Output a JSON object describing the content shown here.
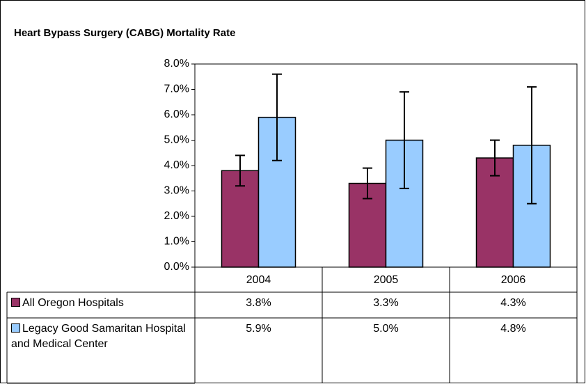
{
  "chart_data": {
    "type": "bar",
    "title": "Heart Bypass Surgery (CABG) Mortality Rate",
    "categories": [
      "2004",
      "2005",
      "2006"
    ],
    "series": [
      {
        "name": "All Oregon Hospitals",
        "color": "#993366",
        "values": [
          3.8,
          3.3,
          4.3
        ],
        "value_labels": [
          "3.8%",
          "3.3%",
          "4.3%"
        ],
        "errors": [
          0.6,
          0.6,
          0.7
        ]
      },
      {
        "name": "Legacy Good Samaritan Hospital and Medical Center",
        "color": "#99ccff",
        "values": [
          5.9,
          5.0,
          4.8
        ],
        "value_labels": [
          "5.9%",
          "5.0%",
          "4.8%"
        ],
        "errors": [
          1.7,
          1.9,
          2.3
        ]
      }
    ],
    "ylim": [
      0,
      8
    ],
    "yticks": [
      {
        "value": 0,
        "label": "0.0%"
      },
      {
        "value": 1,
        "label": "1.0%"
      },
      {
        "value": 2,
        "label": "2.0%"
      },
      {
        "value": 3,
        "label": "3.0%"
      },
      {
        "value": 4,
        "label": "4.0%"
      },
      {
        "value": 5,
        "label": "5.0%"
      },
      {
        "value": 6,
        "label": "6.0%"
      },
      {
        "value": 7,
        "label": "7.0%"
      },
      {
        "value": 8,
        "label": "8.0%"
      }
    ],
    "grid": false
  }
}
